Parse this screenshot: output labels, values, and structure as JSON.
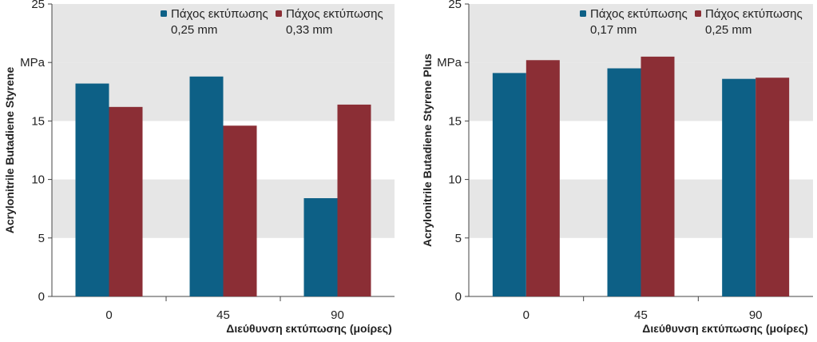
{
  "colors": {
    "series1": "#0d6086",
    "series2": "#8b2e35",
    "band": "#e6e6e6",
    "axis": "#444444"
  },
  "chart_data": [
    {
      "type": "bar",
      "categories": [
        "0",
        "45",
        "90"
      ],
      "series": [
        {
          "name": "Πάχος εκτύπωσης",
          "name_line2": "0,25 mm",
          "values": [
            18.2,
            18.8,
            8.4
          ]
        },
        {
          "name": "Πάχος εκτύπωσης",
          "name_line2": "0,33 mm",
          "values": [
            16.2,
            14.6,
            16.4
          ]
        }
      ],
      "ylabel": "Acrylonitrile Butadiene Styrene",
      "xlabel": "Διεύθυνση εκτύπωσης (μοίρες)",
      "ylim": [
        0,
        25
      ],
      "yticks": [
        "0",
        "5",
        "10",
        "15",
        "MPa",
        "25"
      ],
      "legend": "top"
    },
    {
      "type": "bar",
      "categories": [
        "0",
        "45",
        "90"
      ],
      "series": [
        {
          "name": "Πάχος εκτύπωσης",
          "name_line2": "0,17 mm",
          "values": [
            19.1,
            19.5,
            18.6
          ]
        },
        {
          "name": "Πάχος εκτύπωσης",
          "name_line2": "0,25 mm",
          "values": [
            20.2,
            20.5,
            18.7
          ]
        }
      ],
      "ylabel": "Acrylonitrile Butadiene Styrene Plus",
      "xlabel": "Διεύθυνση εκτύπωσης (μοίρες)",
      "ylim": [
        0,
        25
      ],
      "yticks": [
        "0",
        "5",
        "10",
        "15",
        "MPa",
        "25"
      ],
      "legend": "top"
    }
  ]
}
